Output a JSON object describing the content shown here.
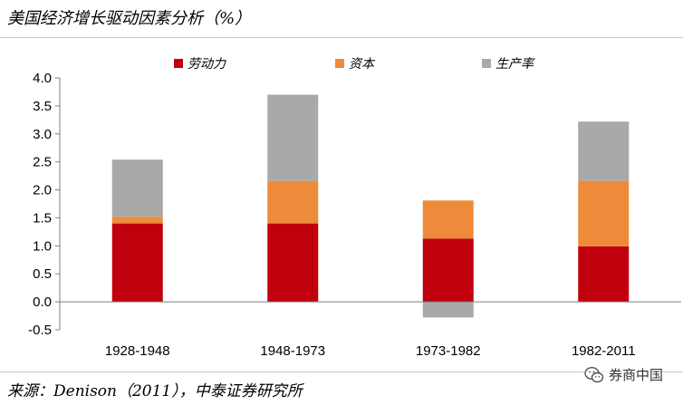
{
  "title": "美国经济增长驱动因素分析（%）",
  "source": "来源：Denison（2011），中泰证券研究所",
  "watermark": {
    "text": "券商中国",
    "icon": "wechat-icon"
  },
  "colors": {
    "labor": "#c0000c",
    "capital": "#ee8b3a",
    "productivity": "#a9a9a9",
    "axis": "#7f7f7f"
  },
  "chart_data": {
    "type": "bar",
    "stacked": true,
    "title": "美国经济增长驱动因素分析（%）",
    "xlabel": "",
    "ylabel": "",
    "categories": [
      "1928-1948",
      "1948-1973",
      "1973-1982",
      "1982-2011"
    ],
    "series": [
      {
        "name": "劳动力",
        "values": [
          1.4,
          1.4,
          1.13,
          0.99
        ]
      },
      {
        "name": "资本",
        "values": [
          0.12,
          0.76,
          0.68,
          1.17
        ]
      },
      {
        "name": "生产率",
        "values": [
          1.02,
          1.54,
          -0.28,
          1.06
        ]
      }
    ],
    "ylim": [
      -0.5,
      4.0
    ],
    "yticks": [
      "4.0",
      "3.5",
      "3.0",
      "2.5",
      "2.0",
      "1.5",
      "1.0",
      "0.5",
      "0.0",
      "-0.5"
    ],
    "grid": false,
    "legend": "top"
  }
}
